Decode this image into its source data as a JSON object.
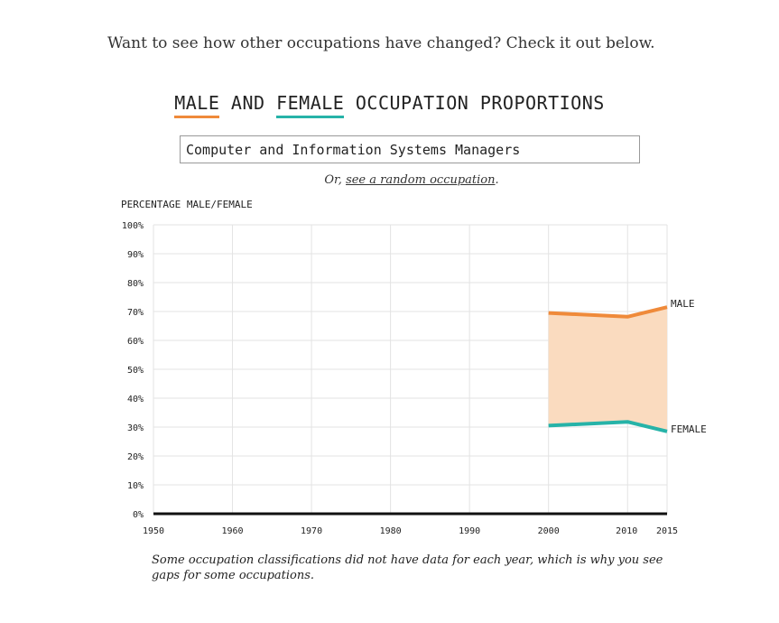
{
  "intro_text": "Want to see how other occupations have changed? Check it out below.",
  "title": {
    "male": "MALE",
    "and": "AND",
    "female": "FEMALE",
    "rest": "OCCUPATION PROPORTIONS"
  },
  "search": {
    "value": "Computer and Information Systems Managers"
  },
  "random": {
    "prefix": "Or, ",
    "link": "see a random occupation",
    "suffix": "."
  },
  "note": "Some occupation classifications did not have data for each year, which is why you see gaps for some occupations.",
  "colors": {
    "male": "#ef8a3a",
    "female": "#26b3a8",
    "band": "#fadbbf",
    "grid": "#e3e3e3",
    "baseline": "#111111"
  },
  "chart_data": {
    "type": "area",
    "ylabel": "PERCENTAGE MALE/FEMALE",
    "xlim": [
      1950,
      2015
    ],
    "ylim": [
      0,
      100
    ],
    "x_ticks": [
      1950,
      1960,
      1970,
      1980,
      1990,
      2000,
      2010,
      2015
    ],
    "y_ticks": [
      0,
      10,
      20,
      30,
      40,
      50,
      60,
      70,
      80,
      90,
      100
    ],
    "y_tick_labels": [
      "0%",
      "10%",
      "20%",
      "30%",
      "40%",
      "50%",
      "60%",
      "70%",
      "80%",
      "90%",
      "100%"
    ],
    "grid": true,
    "series": [
      {
        "name": "MALE",
        "x": [
          2000,
          2010,
          2015
        ],
        "values": [
          69.5,
          68.2,
          71.5
        ]
      },
      {
        "name": "FEMALE",
        "x": [
          2000,
          2010,
          2015
        ],
        "values": [
          30.5,
          31.8,
          28.5
        ]
      }
    ]
  }
}
